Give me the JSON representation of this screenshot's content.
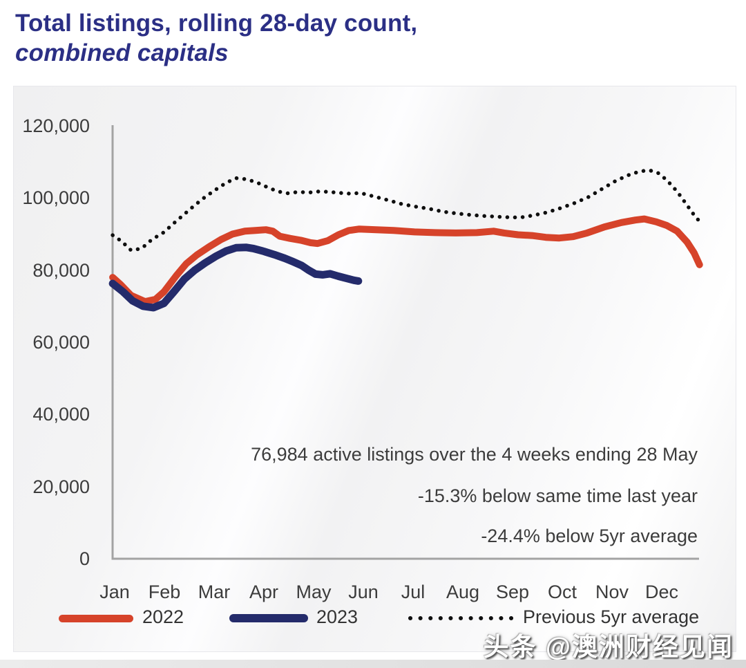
{
  "header": {
    "title_line1": "Total listings, rolling 28-day count,",
    "title_line2": "combined capitals"
  },
  "annotation": {
    "line1": "76,984 active listings over the 4 weeks ending 28 May",
    "line2": "-15.3% below same time last year",
    "line3": "-24.4% below 5yr average"
  },
  "watermark": {
    "text": "头条 @澳洲财经见闻"
  },
  "colors": {
    "title_navy": "#2b2f85",
    "series_2022_red": "#d6432a",
    "series_2023_navy": "#242b6b",
    "series_avg_black": "#0f0f0f",
    "axis_gray": "#a3a3a3",
    "text_gray": "#3c3c3c",
    "panel_bg": "#f2f2f3"
  },
  "chart_data": {
    "type": "line",
    "title": "Total listings, rolling 28-day count, combined capitals",
    "xlabel": "",
    "ylabel": "",
    "x_categories": [
      "Jan",
      "Feb",
      "Mar",
      "Apr",
      "May",
      "Jun",
      "Jul",
      "Aug",
      "Sep",
      "Oct",
      "Nov",
      "Dec"
    ],
    "x_unit": "month position (1 = Jan ... 12 = Dec, fractional = within-month)",
    "ylim": [
      0,
      120000
    ],
    "grid": false,
    "legend_position": "bottom",
    "y_ticks": [
      {
        "value": 120000,
        "label": "120,000"
      },
      {
        "value": 100000,
        "label": "100,000"
      },
      {
        "value": 80000,
        "label": "80,000"
      },
      {
        "value": 60000,
        "label": "60,000"
      },
      {
        "value": 40000,
        "label": "40,000"
      },
      {
        "value": 20000,
        "label": "20,000"
      },
      {
        "value": 0,
        "label": "0"
      }
    ],
    "series": [
      {
        "name": "2022",
        "color": "#d6432a",
        "style": "solid",
        "width": 10,
        "points": [
          [
            0.96,
            78000
          ],
          [
            1.12,
            76000
          ],
          [
            1.33,
            73000
          ],
          [
            1.61,
            71300
          ],
          [
            1.82,
            71900
          ],
          [
            1.99,
            74000
          ],
          [
            2.24,
            78500
          ],
          [
            2.44,
            81800
          ],
          [
            2.65,
            84200
          ],
          [
            2.9,
            86500
          ],
          [
            3.14,
            88500
          ],
          [
            3.37,
            90000
          ],
          [
            3.62,
            90800
          ],
          [
            3.83,
            91000
          ],
          [
            4.04,
            91200
          ],
          [
            4.18,
            90800
          ],
          [
            4.32,
            89400
          ],
          [
            4.53,
            88800
          ],
          [
            4.74,
            88300
          ],
          [
            4.94,
            87600
          ],
          [
            5.08,
            87400
          ],
          [
            5.29,
            88200
          ],
          [
            5.5,
            89800
          ],
          [
            5.71,
            91000
          ],
          [
            5.92,
            91400
          ],
          [
            6.26,
            91200
          ],
          [
            6.61,
            91000
          ],
          [
            7.03,
            90600
          ],
          [
            7.44,
            90400
          ],
          [
            7.86,
            90300
          ],
          [
            8.28,
            90400
          ],
          [
            8.62,
            90800
          ],
          [
            8.83,
            90300
          ],
          [
            9.11,
            89800
          ],
          [
            9.39,
            89600
          ],
          [
            9.67,
            89100
          ],
          [
            9.94,
            88900
          ],
          [
            10.22,
            89300
          ],
          [
            10.5,
            90300
          ],
          [
            10.85,
            92000
          ],
          [
            11.19,
            93200
          ],
          [
            11.47,
            93900
          ],
          [
            11.65,
            94200
          ],
          [
            11.89,
            93400
          ],
          [
            12.1,
            92400
          ],
          [
            12.31,
            90800
          ],
          [
            12.51,
            87800
          ],
          [
            12.65,
            84800
          ],
          [
            12.76,
            81500
          ]
        ]
      },
      {
        "name": "2023",
        "color": "#242b6b",
        "style": "solid",
        "width": 11,
        "points": [
          [
            0.96,
            76300
          ],
          [
            1.17,
            74000
          ],
          [
            1.36,
            71500
          ],
          [
            1.57,
            70000
          ],
          [
            1.78,
            69600
          ],
          [
            1.99,
            70800
          ],
          [
            2.19,
            74000
          ],
          [
            2.4,
            77500
          ],
          [
            2.61,
            80000
          ],
          [
            2.82,
            82000
          ],
          [
            3.03,
            83800
          ],
          [
            3.24,
            85300
          ],
          [
            3.44,
            86200
          ],
          [
            3.65,
            86300
          ],
          [
            3.79,
            86000
          ],
          [
            4.0,
            85200
          ],
          [
            4.21,
            84300
          ],
          [
            4.42,
            83300
          ],
          [
            4.56,
            82500
          ],
          [
            4.76,
            81300
          ],
          [
            4.9,
            80000
          ],
          [
            5.04,
            78900
          ],
          [
            5.18,
            78700
          ],
          [
            5.33,
            79000
          ],
          [
            5.5,
            78300
          ],
          [
            5.67,
            77700
          ],
          [
            5.81,
            77200
          ],
          [
            5.9,
            76984
          ]
        ]
      },
      {
        "name": "Previous 5yr average",
        "color": "#0f0f0f",
        "style": "dotted",
        "width": 5.5,
        "points": [
          [
            0.96,
            89700
          ],
          [
            1.14,
            88000
          ],
          [
            1.33,
            85500
          ],
          [
            1.54,
            86000
          ],
          [
            1.75,
            88500
          ],
          [
            1.99,
            90500
          ],
          [
            2.19,
            93000
          ],
          [
            2.4,
            95500
          ],
          [
            2.61,
            98000
          ],
          [
            2.82,
            100300
          ],
          [
            3.03,
            102300
          ],
          [
            3.24,
            104200
          ],
          [
            3.44,
            105500
          ],
          [
            3.65,
            105200
          ],
          [
            3.86,
            104300
          ],
          [
            4.07,
            103000
          ],
          [
            4.28,
            101800
          ],
          [
            4.49,
            101300
          ],
          [
            4.69,
            101700
          ],
          [
            4.9,
            101500
          ],
          [
            5.11,
            101800
          ],
          [
            5.32,
            101700
          ],
          [
            5.53,
            101400
          ],
          [
            5.74,
            101200
          ],
          [
            5.94,
            101400
          ],
          [
            6.22,
            100400
          ],
          [
            6.5,
            99400
          ],
          [
            6.78,
            98300
          ],
          [
            7.06,
            97600
          ],
          [
            7.33,
            97000
          ],
          [
            7.61,
            96200
          ],
          [
            7.89,
            95700
          ],
          [
            8.17,
            95300
          ],
          [
            8.44,
            95000
          ],
          [
            8.72,
            94800
          ],
          [
            9.0,
            94600
          ],
          [
            9.21,
            94700
          ],
          [
            9.42,
            95200
          ],
          [
            9.69,
            96000
          ],
          [
            9.97,
            97200
          ],
          [
            10.25,
            98600
          ],
          [
            10.53,
            100300
          ],
          [
            10.81,
            102600
          ],
          [
            11.08,
            104800
          ],
          [
            11.36,
            106500
          ],
          [
            11.57,
            107400
          ],
          [
            11.75,
            107700
          ],
          [
            11.92,
            107000
          ],
          [
            12.1,
            105000
          ],
          [
            12.31,
            101800
          ],
          [
            12.51,
            98000
          ],
          [
            12.65,
            95300
          ],
          [
            12.76,
            93500
          ]
        ]
      }
    ]
  }
}
